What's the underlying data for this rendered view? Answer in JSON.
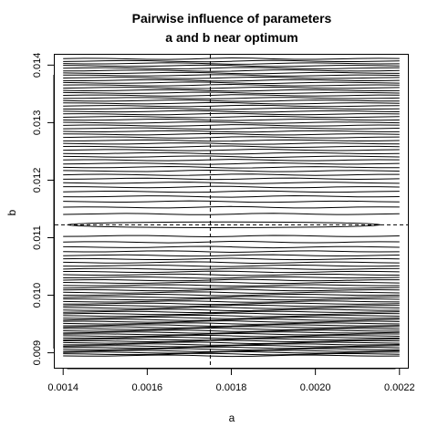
{
  "chart_data": {
    "type": "contour",
    "title": [
      "Pairwise influence of parameters",
      "a and b near optimum"
    ],
    "xlabel": "a",
    "ylabel": "b",
    "xlim": [
      0.00138,
      0.00222
    ],
    "ylim": [
      0.00874,
      0.01418
    ],
    "xticks": [
      0.0014,
      0.0016,
      0.0018,
      0.002,
      0.0022
    ],
    "xtick_labels": [
      "0.0014",
      "0.0016",
      "0.0018",
      "0.0020",
      "0.0022"
    ],
    "yticks": [
      0.009,
      0.01,
      0.011,
      0.012,
      0.013,
      0.014
    ],
    "ytick_labels": [
      "0.009",
      "0.010",
      "0.011",
      "0.012",
      "0.013",
      "0.014"
    ],
    "grid_x": [
      0.0014,
      0.0022
    ],
    "grid_y": [
      0.00895,
      0.01411
    ],
    "optimum": {
      "a": 0.00175,
      "b": 0.011225
    },
    "reference_lines": {
      "vertical_a": 0.00175,
      "horizontal_b": 0.011225
    },
    "innermost_contour": {
      "a_range": [
        0.00141,
        0.002155
      ],
      "b_halfwidth": 4.95e-05
    },
    "contour_levels_below": 52,
    "contour_levels_above": 50,
    "line_color": "#000000"
  }
}
